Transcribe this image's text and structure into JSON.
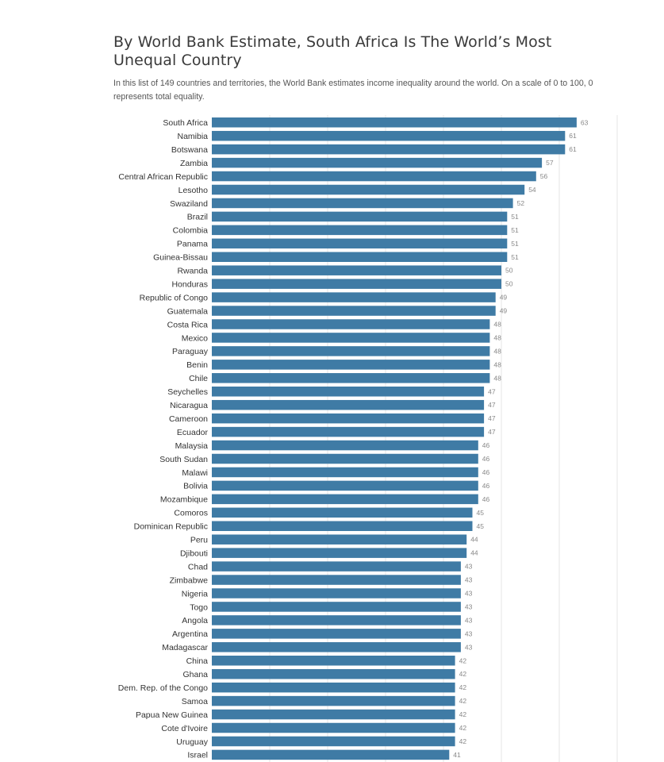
{
  "title": "By World Bank Estimate, South Africa Is The World’s Most Unequal Country",
  "subtitle": "In this list of 149 countries and territories, the World Bank estimates income inequality around the world. On a scale of 0 to 100, 0 represents total equality.",
  "colors": {
    "bar": "#3f7ba5",
    "grid": "#e6e6e6"
  },
  "chart_data": {
    "type": "bar",
    "orientation": "horizontal",
    "title": "By World Bank Estimate, South Africa Is The World’s Most Unequal Country",
    "xlabel": "",
    "ylabel": "",
    "xlim": [
      0,
      70
    ],
    "grid": true,
    "categories": [
      "South Africa",
      "Namibia",
      "Botswana",
      "Zambia",
      "Central African Republic",
      "Lesotho",
      "Swaziland",
      "Brazil",
      "Colombia",
      "Panama",
      "Guinea-Bissau",
      "Rwanda",
      "Honduras",
      "Republic of Congo",
      "Guatemala",
      "Costa Rica",
      "Mexico",
      "Paraguay",
      "Benin",
      "Chile",
      "Seychelles",
      "Nicaragua",
      "Cameroon",
      "Ecuador",
      "Malaysia",
      "South Sudan",
      "Malawi",
      "Bolivia",
      "Mozambique",
      "Comoros",
      "Dominican Republic",
      "Peru",
      "Djibouti",
      "Chad",
      "Zimbabwe",
      "Nigeria",
      "Togo",
      "Angola",
      "Argentina",
      "Madagascar",
      "China",
      "Ghana",
      "Dem. Rep. of the Congo",
      "Samoa",
      "Papua New Guinea",
      "Cote d'Ivoire",
      "Uruguay",
      "Israel"
    ],
    "values": [
      63,
      61,
      61,
      57,
      56,
      54,
      52,
      51,
      51,
      51,
      51,
      50,
      50,
      49,
      49,
      48,
      48,
      48,
      48,
      48,
      47,
      47,
      47,
      47,
      46,
      46,
      46,
      46,
      46,
      45,
      45,
      44,
      44,
      43,
      43,
      43,
      43,
      43,
      43,
      43,
      42,
      42,
      42,
      42,
      42,
      42,
      42,
      41
    ]
  }
}
